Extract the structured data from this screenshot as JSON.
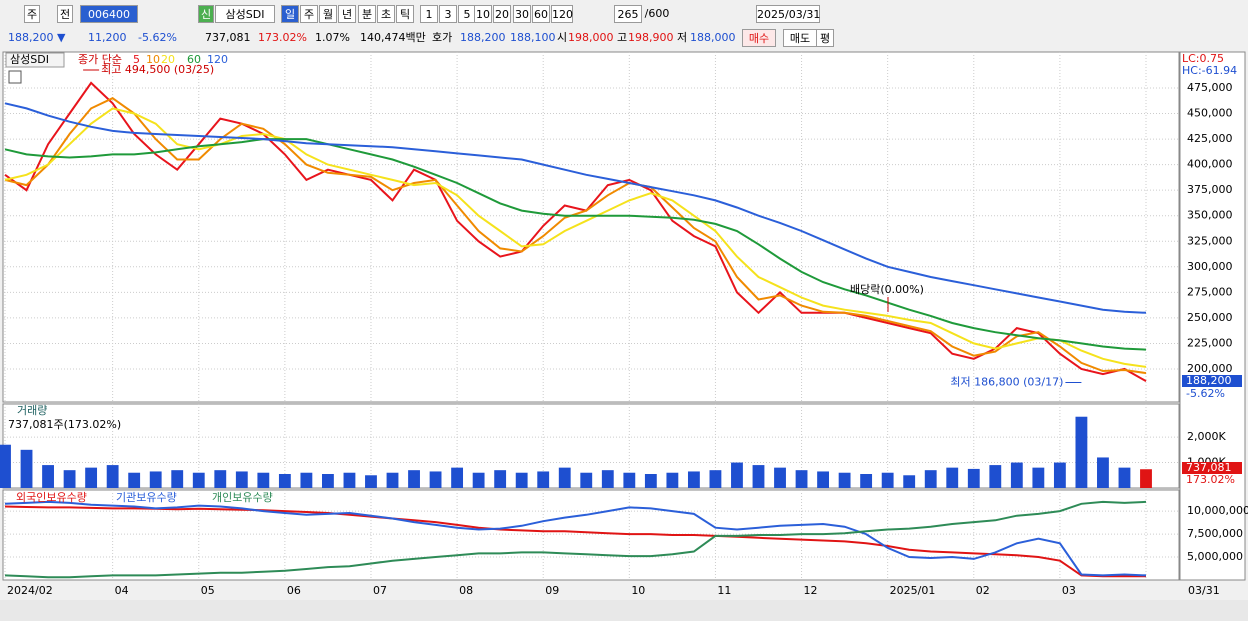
{
  "toolbar": {
    "row1": [
      "주",
      "전",
      "006400",
      "신",
      "삼성SDI",
      "일",
      "주",
      "월",
      "년",
      "분",
      "초",
      "틱",
      "1",
      "3",
      "5",
      "10",
      "20",
      "30",
      "60",
      "120",
      "265",
      "/600",
      "2025/03/31"
    ],
    "row2": [
      "188,200 ▼",
      "11,200",
      "-5.62%",
      "737,081",
      "173.02%",
      "1.07%",
      "140,474백만",
      "호가",
      "188,200",
      "188,100",
      "시",
      "198,000",
      "고",
      "198,900",
      "저",
      "188,000",
      "매수",
      "매도",
      "평"
    ]
  },
  "chart_data": [
    {
      "type": "line",
      "title": "삼성SDI",
      "subtitle": "종가 단순",
      "categories": [
        "2024/02",
        null,
        null,
        null,
        null,
        "04",
        null,
        null,
        null,
        "05",
        null,
        null,
        null,
        "06",
        null,
        null,
        null,
        "07",
        null,
        null,
        null,
        "08",
        null,
        null,
        null,
        "09",
        null,
        null,
        null,
        "10",
        null,
        null,
        null,
        "11",
        null,
        null,
        null,
        "12",
        null,
        null,
        null,
        "2025/01",
        null,
        null,
        null,
        "02",
        null,
        null,
        null,
        "03",
        null,
        null,
        null,
        "03/31"
      ],
      "series": [
        {
          "name": "5",
          "color": "#e8141c",
          "values": [
            390000,
            375000,
            420000,
            450000,
            480000,
            460000,
            430000,
            410000,
            395000,
            420000,
            445000,
            440000,
            430000,
            410000,
            385000,
            395000,
            390000,
            385000,
            365000,
            395000,
            385000,
            345000,
            325000,
            310000,
            315000,
            340000,
            360000,
            355000,
            380000,
            385000,
            375000,
            345000,
            330000,
            320000,
            275000,
            255000,
            275000,
            255000,
            255000,
            255000,
            250000,
            245000,
            240000,
            235000,
            215000,
            210000,
            220000,
            240000,
            235000,
            215000,
            200000,
            195000,
            200000,
            188200
          ]
        },
        {
          "name": "10",
          "color": "#f08a00",
          "values": [
            385000,
            380000,
            400000,
            430000,
            455000,
            465000,
            450000,
            425000,
            405000,
            405000,
            425000,
            440000,
            435000,
            420000,
            400000,
            392000,
            390000,
            388000,
            375000,
            382000,
            385000,
            360000,
            335000,
            318000,
            315000,
            330000,
            348000,
            355000,
            370000,
            382000,
            378000,
            358000,
            338000,
            325000,
            290000,
            268000,
            272000,
            262000,
            256000,
            255000,
            252000,
            247000,
            242000,
            237000,
            222000,
            213000,
            217000,
            232000,
            236000,
            222000,
            206000,
            198000,
            199000,
            196000
          ]
        },
        {
          "name": "20",
          "color": "#f5e21c",
          "values": [
            385000,
            390000,
            400000,
            420000,
            440000,
            455000,
            450000,
            440000,
            420000,
            415000,
            420000,
            428000,
            430000,
            425000,
            410000,
            400000,
            395000,
            390000,
            385000,
            380000,
            382000,
            370000,
            350000,
            335000,
            320000,
            322000,
            335000,
            345000,
            355000,
            365000,
            372000,
            365000,
            350000,
            335000,
            310000,
            290000,
            280000,
            270000,
            262000,
            258000,
            255000,
            252000,
            248000,
            245000,
            235000,
            225000,
            220000,
            225000,
            230000,
            228000,
            218000,
            210000,
            205000,
            202000
          ]
        },
        {
          "name": "60",
          "color": "#1f9a3a",
          "values": [
            415000,
            410000,
            408000,
            407000,
            408000,
            410000,
            410000,
            412000,
            415000,
            418000,
            420000,
            422000,
            425000,
            425000,
            425000,
            420000,
            415000,
            410000,
            405000,
            398000,
            390000,
            382000,
            372000,
            362000,
            355000,
            352000,
            350000,
            350000,
            350000,
            350000,
            349000,
            348000,
            346000,
            342000,
            335000,
            322000,
            308000,
            295000,
            285000,
            278000,
            272000,
            265000,
            258000,
            252000,
            245000,
            240000,
            236000,
            233000,
            230000,
            228000,
            225000,
            222000,
            220000,
            219000
          ]
        },
        {
          "name": "120",
          "color": "#2b5fd9",
          "values": [
            460000,
            455000,
            448000,
            442000,
            437000,
            433000,
            431000,
            430000,
            429000,
            428000,
            427000,
            426000,
            425000,
            423000,
            421000,
            420000,
            419000,
            418000,
            417000,
            415000,
            413000,
            411000,
            409000,
            407000,
            405000,
            400000,
            395000,
            390000,
            386000,
            382000,
            378000,
            374000,
            370000,
            365000,
            358000,
            350000,
            343000,
            335000,
            326000,
            317000,
            308000,
            300000,
            295000,
            290000,
            286000,
            282000,
            278000,
            274000,
            270000,
            266000,
            262000,
            258000,
            256000,
            255000
          ]
        }
      ],
      "ylim": [
        167700,
        510200
      ],
      "yticks": [
        {
          "value": 200000,
          "label": "200,000"
        },
        {
          "value": 225000,
          "label": "225,000"
        },
        {
          "value": 250000,
          "label": "250,000"
        },
        {
          "value": 275000,
          "label": "275,000"
        },
        {
          "value": 300000,
          "label": "300,000"
        },
        {
          "value": 325000,
          "label": "325,000"
        },
        {
          "value": 350000,
          "label": "350,000"
        },
        {
          "value": 375000,
          "label": "375,000"
        },
        {
          "value": 400000,
          "label": "400,000"
        },
        {
          "value": 425000,
          "label": "425,000"
        },
        {
          "value": 450000,
          "label": "450,000"
        },
        {
          "value": 475000,
          "label": "475,000"
        }
      ],
      "grid": true,
      "annotations": [
        "최고 494,500 (03/25)",
        "최저 186,800 (03/17)",
        "배당락(0.00%)"
      ],
      "high": 494500,
      "low": 186800,
      "lc_label": "LC:0.75",
      "hc_label": "HC:-61.94",
      "last_label": "188,200",
      "change_label": "-5.62%"
    },
    {
      "type": "bar",
      "title": "거래량",
      "subtitle": "737,081주(173.02%)",
      "color": "#1e4fd0",
      "values": [
        1700000,
        1500000,
        900000,
        700000,
        800000,
        900000,
        600000,
        650000,
        700000,
        600000,
        700000,
        650000,
        600000,
        550000,
        600000,
        550000,
        600000,
        500000,
        600000,
        700000,
        650000,
        800000,
        600000,
        700000,
        600000,
        650000,
        800000,
        600000,
        700000,
        600000,
        550000,
        600000,
        650000,
        700000,
        1000000,
        900000,
        800000,
        700000,
        650000,
        600000,
        550000,
        600000,
        500000,
        700000,
        800000,
        750000,
        900000,
        1000000,
        800000,
        1000000,
        2800000,
        1200000,
        800000,
        737081
      ],
      "ylim": [
        0,
        3300000
      ],
      "yticks": [
        {
          "value": 1000000,
          "label": "1,000K"
        },
        {
          "value": 2000000,
          "label": "2,000K"
        }
      ],
      "grid": true,
      "last_label": "737,081",
      "ratio_label": "173.02%"
    },
    {
      "type": "line",
      "series": [
        {
          "name": "외국인보유수량",
          "color": "#e01414",
          "values": [
            10500000,
            10450000,
            10400000,
            10400000,
            10350000,
            10300000,
            10300000,
            10250000,
            10200000,
            10250000,
            10200000,
            10150000,
            10100000,
            10000000,
            9900000,
            9800000,
            9600000,
            9400000,
            9200000,
            9000000,
            8800000,
            8500000,
            8200000,
            8000000,
            7900000,
            7800000,
            7800000,
            7700000,
            7600000,
            7500000,
            7500000,
            7400000,
            7400000,
            7300000,
            7200000,
            7100000,
            7000000,
            6900000,
            6800000,
            6700000,
            6500000,
            6200000,
            5800000,
            5600000,
            5500000,
            5400000,
            5300000,
            5200000,
            5000000,
            4600000,
            3000000,
            2900000,
            2900000,
            2900000
          ]
        },
        {
          "name": "기관보유수량",
          "color": "#2b5fd9",
          "values": [
            10800000,
            10900000,
            11000000,
            10900000,
            10700000,
            10600000,
            10500000,
            10300000,
            10400000,
            10600000,
            10500000,
            10300000,
            10000000,
            9800000,
            9600000,
            9700000,
            9800000,
            9500000,
            9200000,
            8800000,
            8500000,
            8200000,
            8000000,
            8100000,
            8400000,
            8900000,
            9300000,
            9600000,
            10000000,
            10400000,
            10300000,
            10000000,
            9700000,
            8200000,
            8000000,
            8200000,
            8400000,
            8500000,
            8600000,
            8300000,
            7500000,
            6000000,
            5000000,
            4900000,
            5000000,
            4800000,
            5500000,
            6500000,
            7000000,
            6500000,
            3100000,
            3000000,
            3100000,
            3000000
          ]
        },
        {
          "name": "개인보유수량",
          "color": "#2e8b57",
          "values": [
            3000000,
            2900000,
            2800000,
            2800000,
            2900000,
            3000000,
            3000000,
            3000000,
            3100000,
            3200000,
            3300000,
            3300000,
            3400000,
            3500000,
            3700000,
            3900000,
            4000000,
            4300000,
            4600000,
            4800000,
            5000000,
            5200000,
            5400000,
            5400000,
            5500000,
            5500000,
            5400000,
            5300000,
            5200000,
            5100000,
            5100000,
            5300000,
            5600000,
            7300000,
            7300000,
            7400000,
            7400000,
            7500000,
            7500000,
            7600000,
            7800000,
            8000000,
            8100000,
            8300000,
            8600000,
            8800000,
            9000000,
            9500000,
            9700000,
            10000000,
            10800000,
            11000000,
            10900000,
            11000000
          ]
        }
      ],
      "ylim": [
        2500000,
        12300000
      ],
      "yticks": [
        {
          "value": 5000000,
          "label": "5,000,000"
        },
        {
          "value": 7500000,
          "label": "7,500,000"
        },
        {
          "value": 10000000,
          "label": "10,000,000"
        }
      ],
      "grid": true
    }
  ]
}
